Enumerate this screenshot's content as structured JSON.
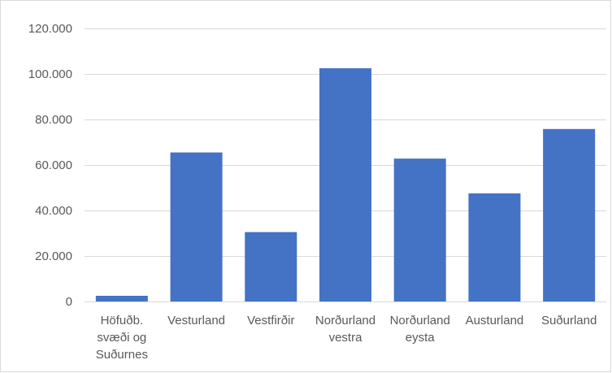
{
  "chart_data": {
    "type": "bar",
    "title": "",
    "xlabel": "",
    "ylabel": "",
    "categories": [
      [
        "Höfuðb.",
        "svæði og",
        "Suðurnes"
      ],
      [
        "Vesturland"
      ],
      [
        "Vestfirðir"
      ],
      [
        "Norðurland",
        "vestra"
      ],
      [
        "Norðurland",
        "eysta"
      ],
      [
        "Austurland"
      ],
      [
        "Suðurland"
      ]
    ],
    "values": [
      2500,
      65500,
      30500,
      102500,
      62800,
      47500,
      75800
    ],
    "ylim": [
      0,
      120000
    ],
    "yticks": [
      0,
      20000,
      40000,
      60000,
      80000,
      100000,
      120000
    ],
    "ytick_labels": [
      "0",
      "20.000",
      "40.000",
      "60.000",
      "80.000",
      "100.000",
      "120.000"
    ],
    "grid": true,
    "legend": "none",
    "bar_color": "#4472c4",
    "grid_color": "#d9d9d9"
  }
}
